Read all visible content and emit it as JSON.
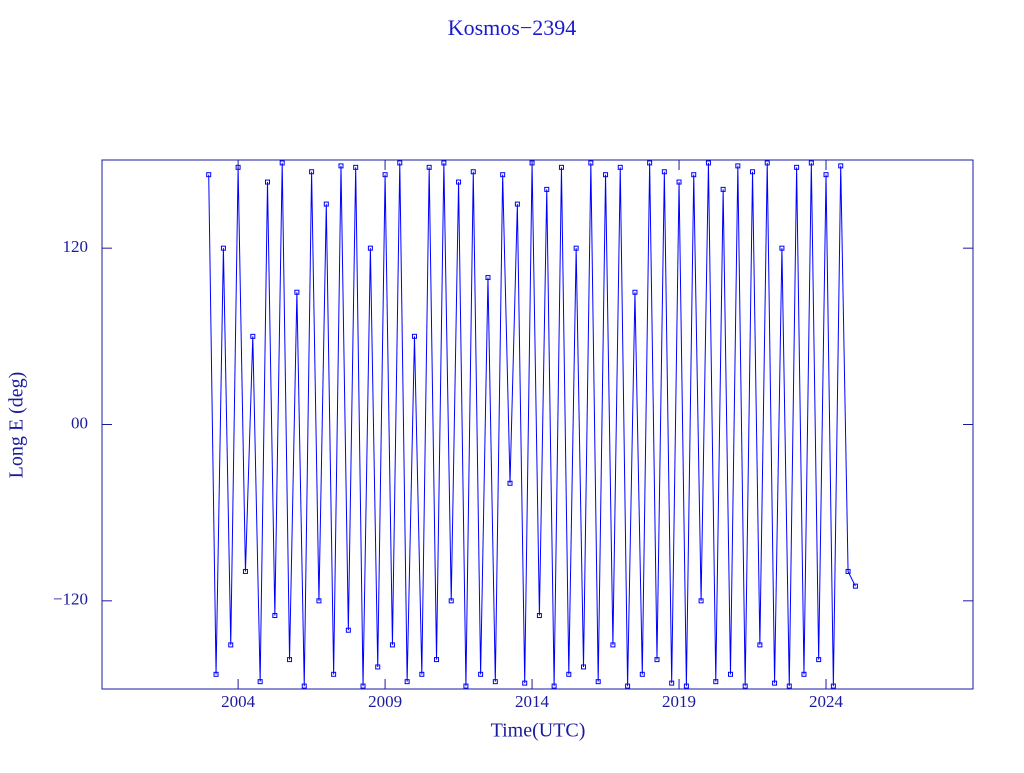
{
  "chart_data": {
    "type": "line",
    "title": "Kosmos−2394",
    "x_label": "Time(UTC)",
    "y_label": "Long E (deg)",
    "xlim": [
      1999.37,
      2029.0
    ],
    "xticks": [
      2004,
      2009,
      2014,
      2019,
      2024
    ],
    "ylim": [
      -180,
      180
    ],
    "yticks": [
      {
        "value": -120,
        "label": "−120"
      },
      {
        "value": 0,
        "label": "00"
      },
      120
    ],
    "series": [
      {
        "color": "#0000ff",
        "x": [
          2003.0,
          2003.25,
          2003.5,
          2003.75,
          2004.0,
          2004.25,
          2004.5,
          2004.75,
          2005.0,
          2005.25,
          2005.5,
          2005.75,
          2006.0,
          2006.25,
          2006.5,
          2006.75,
          2007.0,
          2007.25,
          2007.5,
          2007.75,
          2008.0,
          2008.25,
          2008.5,
          2008.75,
          2009.0,
          2009.25,
          2009.5,
          2009.75,
          2010.0,
          2010.25,
          2010.5,
          2010.75,
          2011.0,
          2011.25,
          2011.5,
          2011.75,
          2012.0,
          2012.25,
          2012.5,
          2012.75,
          2013.0,
          2013.25,
          2013.5,
          2013.75,
          2014.0,
          2014.25,
          2014.5,
          2014.75,
          2015.0,
          2015.25,
          2015.5,
          2015.75,
          2016.0,
          2016.25,
          2016.5,
          2016.75,
          2017.0,
          2017.25,
          2017.5,
          2017.75,
          2018.0,
          2018.25,
          2018.5,
          2018.75,
          2019.0,
          2019.25,
          2019.5,
          2019.75,
          2020.0,
          2020.25,
          2020.5,
          2020.75,
          2021.0,
          2021.25,
          2021.5,
          2021.75,
          2022.0,
          2022.25,
          2022.5,
          2022.75,
          2023.0,
          2023.25,
          2023.5,
          2023.75,
          2024.0,
          2024.25,
          2024.5,
          2024.75,
          2025.0
        ],
        "values": [
          170,
          -170,
          120,
          -150,
          175,
          -100,
          60,
          -175,
          165,
          -130,
          178,
          -160,
          90,
          -178,
          172,
          -120,
          150,
          -170,
          176,
          -140,
          175,
          -178,
          120,
          -165,
          170,
          -150,
          178,
          -175,
          60,
          -170,
          175,
          -160,
          178,
          -120,
          165,
          -178,
          172,
          -170,
          100,
          -175,
          170,
          -40,
          150,
          -176,
          178,
          -130,
          160,
          -178,
          175,
          -170,
          120,
          -165,
          178,
          -175,
          170,
          -150,
          175,
          -178,
          90,
          -170,
          178,
          -160,
          172,
          -176,
          165,
          -178,
          170,
          -120,
          178,
          -175,
          160,
          -170,
          176,
          -178,
          172,
          -150,
          178,
          -176,
          120,
          -178,
          175,
          -170,
          178,
          -160,
          170,
          -178,
          176,
          -100,
          -110
        ]
      }
    ]
  }
}
